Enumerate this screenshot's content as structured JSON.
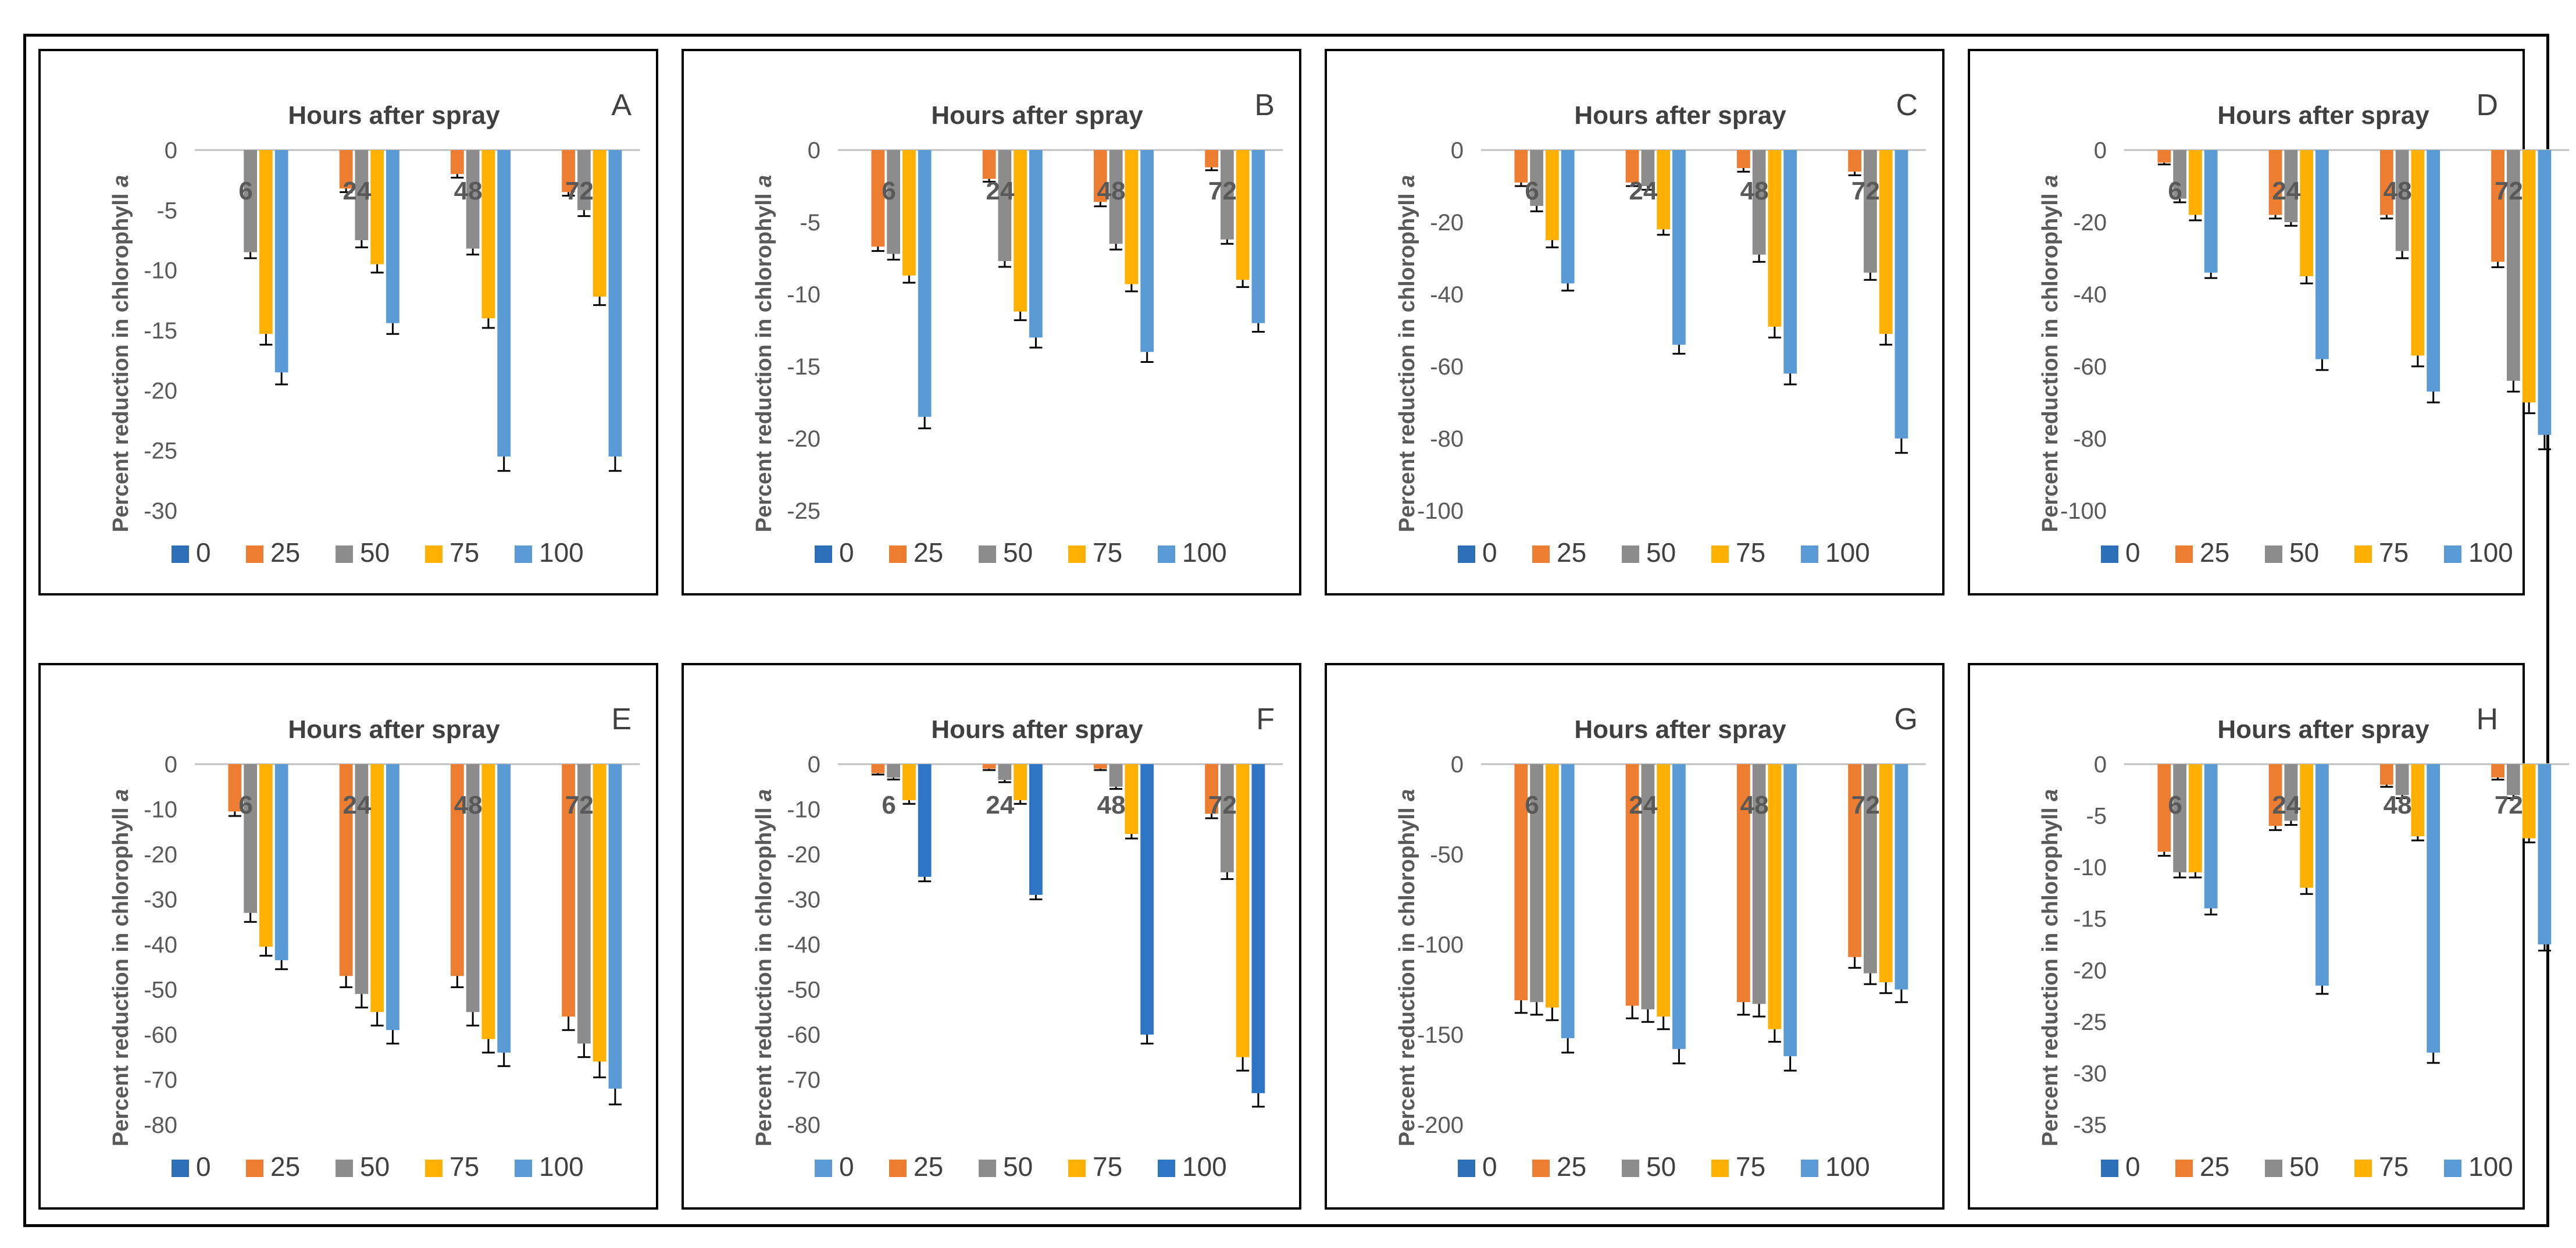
{
  "figure": {
    "y_axis_label": "Percent reduction in chlorophyll",
    "y_axis_symbol": "a",
    "x_title": "Hours after spray"
  },
  "colors": {
    "0": "#2e6fba",
    "25": "#ed7d31",
    "50": "#8c8c8c",
    "75": "#ffb000",
    "100": "#5b9bd5",
    "dark100": "#2e75c6",
    "light0": "#5b9bd5"
  },
  "chart_data": [
    {
      "type": "bar",
      "panel": "A",
      "title": "Hours after spray",
      "categories": [
        "6",
        "24",
        "48",
        "72"
      ],
      "ylim": [
        -30,
        0
      ],
      "ystep": 5,
      "xlabel": "",
      "ylabel": "Percent reduction in chlorophyll a",
      "legend": [
        "0",
        "25",
        "50",
        "75",
        "100"
      ],
      "series": [
        {
          "name": "0",
          "values": [
            0,
            0,
            0,
            0
          ],
          "errors": [
            0,
            0,
            0,
            0
          ]
        },
        {
          "name": "25",
          "values": [
            0,
            -3.2,
            -2,
            -3.5
          ],
          "errors": [
            0,
            0.3,
            0.3,
            0.3
          ]
        },
        {
          "name": "50",
          "values": [
            -8.5,
            -7.5,
            -8.2,
            -5
          ],
          "errors": [
            0.5,
            0.6,
            0.5,
            0.5
          ]
        },
        {
          "name": "75",
          "values": [
            -15.3,
            -9.5,
            -14,
            -12.2
          ],
          "errors": [
            0.9,
            0.7,
            0.8,
            0.7
          ]
        },
        {
          "name": "100",
          "values": [
            -18.5,
            -14.4,
            -25.5,
            -25.5
          ],
          "errors": [
            1.0,
            0.9,
            1.2,
            1.2
          ]
        }
      ]
    },
    {
      "type": "bar",
      "panel": "B",
      "title": "Hours after spray",
      "categories": [
        "6",
        "24",
        "48",
        "72"
      ],
      "ylim": [
        -25,
        0
      ],
      "ystep": 5,
      "xlabel": "",
      "ylabel": "Percent reduction in chlorophyll a",
      "legend": [
        "0",
        "25",
        "50",
        "75",
        "100"
      ],
      "series": [
        {
          "name": "0",
          "values": [
            0,
            0,
            0,
            0
          ],
          "errors": [
            0,
            0,
            0,
            0
          ]
        },
        {
          "name": "25",
          "values": [
            -6.7,
            -2,
            -3.6,
            -1.2
          ],
          "errors": [
            0.3,
            0.2,
            0.3,
            0.2
          ]
        },
        {
          "name": "50",
          "values": [
            -7.2,
            -7.7,
            -6.5,
            -6.2
          ],
          "errors": [
            0.4,
            0.4,
            0.4,
            0.3
          ]
        },
        {
          "name": "75",
          "values": [
            -8.7,
            -11.2,
            -9.3,
            -9
          ],
          "errors": [
            0.5,
            0.6,
            0.5,
            0.5
          ]
        },
        {
          "name": "100",
          "values": [
            -18.5,
            -13,
            -14,
            -12
          ],
          "errors": [
            0.8,
            0.7,
            0.7,
            0.6
          ]
        }
      ]
    },
    {
      "type": "bar",
      "panel": "C",
      "title": "Hours after spray",
      "categories": [
        "6",
        "24",
        "48",
        "72"
      ],
      "ylim": [
        -100,
        0
      ],
      "ystep": 20,
      "xlabel": "",
      "ylabel": "Percent reduction in chlorophyll a",
      "legend": [
        "0",
        "25",
        "50",
        "75",
        "100"
      ],
      "series": [
        {
          "name": "0",
          "values": [
            0,
            0,
            0,
            0
          ],
          "errors": [
            0,
            0,
            0,
            0
          ]
        },
        {
          "name": "25",
          "values": [
            -9,
            -9,
            -5,
            -6
          ],
          "errors": [
            1,
            1,
            1,
            1
          ]
        },
        {
          "name": "50",
          "values": [
            -15.5,
            -10,
            -29,
            -34
          ],
          "errors": [
            1.5,
            1,
            2,
            2
          ]
        },
        {
          "name": "75",
          "values": [
            -25,
            -22,
            -49,
            -51
          ],
          "errors": [
            2,
            1.5,
            3,
            3
          ]
        },
        {
          "name": "100",
          "values": [
            -37,
            -54,
            -62,
            -80
          ],
          "errors": [
            2,
            2.5,
            3,
            4
          ]
        }
      ]
    },
    {
      "type": "bar",
      "panel": "D",
      "title": "Hours after spray",
      "categories": [
        "6",
        "24",
        "48",
        "72"
      ],
      "ylim": [
        -100,
        0
      ],
      "ystep": 20,
      "xlabel": "",
      "ylabel": "Percent reduction in chlorophyll a",
      "legend": [
        "0",
        "25",
        "50",
        "75",
        "100"
      ],
      "series": [
        {
          "name": "0",
          "values": [
            0,
            0,
            0,
            0
          ],
          "errors": [
            0,
            0,
            0,
            0
          ]
        },
        {
          "name": "25",
          "values": [
            -3.5,
            -18,
            -18,
            -31
          ],
          "errors": [
            0.5,
            1,
            1,
            1.5
          ]
        },
        {
          "name": "50",
          "values": [
            -13.5,
            -20,
            -28,
            -64
          ],
          "errors": [
            1,
            1,
            2,
            3
          ]
        },
        {
          "name": "75",
          "values": [
            -18,
            -35,
            -57,
            -70
          ],
          "errors": [
            1.5,
            2,
            3,
            3
          ]
        },
        {
          "name": "100",
          "values": [
            -34,
            -58,
            -67,
            -79
          ],
          "errors": [
            1.5,
            3,
            3,
            4
          ]
        }
      ]
    },
    {
      "type": "bar",
      "panel": "E",
      "title": "Hours after spray",
      "categories": [
        "6",
        "24",
        "48",
        "72"
      ],
      "ylim": [
        -80,
        0
      ],
      "ystep": 10,
      "xlabel": "",
      "ylabel": "Percent reduction in chlorophyll a",
      "legend": [
        "0",
        "25",
        "50",
        "75",
        "100"
      ],
      "series": [
        {
          "name": "0",
          "values": [
            0,
            0,
            0,
            0
          ],
          "errors": [
            0,
            0,
            0,
            0
          ]
        },
        {
          "name": "25",
          "values": [
            -10.5,
            -47,
            -47,
            -56
          ],
          "errors": [
            1,
            2.5,
            2.5,
            3
          ]
        },
        {
          "name": "50",
          "values": [
            -33,
            -51,
            -55,
            -62
          ],
          "errors": [
            2,
            3,
            3,
            3
          ]
        },
        {
          "name": "75",
          "values": [
            -40.5,
            -55,
            -61,
            -66
          ],
          "errors": [
            2,
            3,
            3,
            3.5
          ]
        },
        {
          "name": "100",
          "values": [
            -43.5,
            -59,
            -64,
            -72
          ],
          "errors": [
            2,
            3,
            3,
            3.5
          ]
        }
      ]
    },
    {
      "type": "bar",
      "panel": "F",
      "title": "Hours after spray",
      "categories": [
        "6",
        "24",
        "48",
        "72"
      ],
      "ylim": [
        -80,
        0
      ],
      "ystep": 10,
      "xlabel": "",
      "ylabel": "Percent reduction in chlorophyll a",
      "legend": [
        "0",
        "25",
        "50",
        "75",
        "100"
      ],
      "series": [
        {
          "name": "0",
          "values": [
            0,
            0,
            0,
            0
          ],
          "errors": [
            0,
            0,
            0,
            0
          ]
        },
        {
          "name": "25",
          "values": [
            -2,
            -1,
            -1,
            -11
          ],
          "errors": [
            0.3,
            0.3,
            0.3,
            1
          ]
        },
        {
          "name": "50",
          "values": [
            -3,
            -3.5,
            -5,
            -24
          ],
          "errors": [
            0.4,
            0.5,
            0.5,
            1.5
          ]
        },
        {
          "name": "75",
          "values": [
            -8,
            -8,
            -15.5,
            -65
          ],
          "errors": [
            0.8,
            0.8,
            1,
            3
          ]
        },
        {
          "name": "100",
          "values": [
            -25,
            -29,
            -60,
            -73
          ],
          "errors": [
            1,
            1,
            2,
            3
          ]
        }
      ]
    },
    {
      "type": "bar",
      "panel": "G",
      "title": "Hours after spray",
      "categories": [
        "6",
        "24",
        "48",
        "72"
      ],
      "ylim": [
        -200,
        0
      ],
      "ystep": 50,
      "xlabel": "",
      "ylabel": "Percent reduction in chlorophyll a",
      "legend": [
        "0",
        "25",
        "50",
        "75",
        "100"
      ],
      "series": [
        {
          "name": "0",
          "values": [
            0,
            0,
            0,
            0
          ],
          "errors": [
            0,
            0,
            0,
            0
          ]
        },
        {
          "name": "25",
          "values": [
            -131,
            -134,
            -132,
            -107
          ],
          "errors": [
            7,
            7,
            7,
            6
          ]
        },
        {
          "name": "50",
          "values": [
            -132,
            -136,
            -133,
            -116
          ],
          "errors": [
            7,
            7,
            7,
            6
          ]
        },
        {
          "name": "75",
          "values": [
            -135,
            -140,
            -147,
            -121
          ],
          "errors": [
            7,
            7,
            7,
            6
          ]
        },
        {
          "name": "100",
          "values": [
            -152,
            -158,
            -162,
            -125
          ],
          "errors": [
            8,
            8,
            8,
            7
          ]
        }
      ]
    },
    {
      "type": "bar",
      "panel": "H",
      "title": "Hours after spray",
      "categories": [
        "6",
        "24",
        "48",
        "72"
      ],
      "ylim": [
        -35,
        0
      ],
      "ystep": 5,
      "xlabel": "",
      "ylabel": "Percent reduction in chlorophyll a",
      "legend": [
        "0",
        "25",
        "50",
        "75",
        "100"
      ],
      "series": [
        {
          "name": "0",
          "values": [
            0,
            0,
            0,
            0
          ],
          "errors": [
            0,
            0,
            0,
            0
          ]
        },
        {
          "name": "25",
          "values": [
            -8.5,
            -6,
            -2,
            -1.3
          ],
          "errors": [
            0.4,
            0.4,
            0.2,
            0.2
          ]
        },
        {
          "name": "50",
          "values": [
            -10.5,
            -5.5,
            -3,
            -3
          ],
          "errors": [
            0.5,
            0.4,
            0.3,
            0.3
          ]
        },
        {
          "name": "75",
          "values": [
            -10.5,
            -12,
            -7,
            -7.2
          ],
          "errors": [
            0.5,
            0.6,
            0.4,
            0.4
          ]
        },
        {
          "name": "100",
          "values": [
            -14,
            -21.5,
            -28,
            -17.5
          ],
          "errors": [
            0.6,
            0.8,
            1,
            0.6
          ]
        }
      ]
    }
  ]
}
